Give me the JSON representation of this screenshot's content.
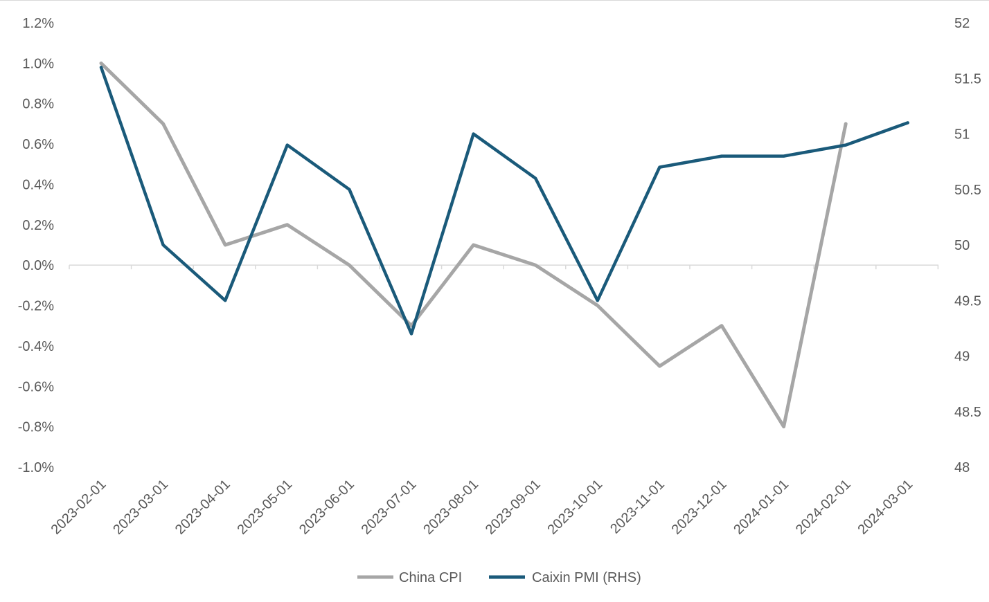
{
  "chart_data": {
    "type": "line",
    "title": "",
    "categories": [
      "2023-02-01",
      "2023-03-01",
      "2023-04-01",
      "2023-05-01",
      "2023-06-01",
      "2023-07-01",
      "2023-08-01",
      "2023-09-01",
      "2023-10-01",
      "2023-11-01",
      "2023-12-01",
      "2024-01-01",
      "2024-02-01",
      "2024-03-01"
    ],
    "y_left": {
      "ylim": [
        -0.01,
        0.012
      ],
      "ticks": [
        "1.2%",
        "1.0%",
        "0.8%",
        "0.6%",
        "0.4%",
        "0.2%",
        "0.0%",
        "-0.2%",
        "-0.4%",
        "-0.6%",
        "-0.8%",
        "-1.0%"
      ],
      "tick_values": [
        0.012,
        0.01,
        0.008,
        0.006,
        0.004,
        0.002,
        0.0,
        -0.002,
        -0.004,
        -0.006,
        -0.008,
        -0.01
      ]
    },
    "y_right": {
      "ylim": [
        48,
        52
      ],
      "ticks": [
        "52",
        "51.5",
        "51",
        "50.5",
        "50",
        "49.5",
        "49",
        "48.5",
        "48"
      ],
      "tick_values": [
        52,
        51.5,
        51,
        50.5,
        50,
        49.5,
        49,
        48.5,
        48
      ]
    },
    "series": [
      {
        "name": "China CPI",
        "axis": "left",
        "color": "#a6a6a6",
        "values": [
          0.01,
          0.007,
          0.001,
          0.002,
          0.0,
          -0.003,
          0.001,
          0.0,
          -0.002,
          -0.005,
          -0.003,
          -0.008,
          0.007,
          null
        ]
      },
      {
        "name": "Caixin PMI (RHS)",
        "axis": "right",
        "color": "#1a5a7a",
        "values": [
          51.6,
          50.0,
          49.5,
          50.9,
          50.5,
          49.2,
          51.0,
          50.6,
          49.5,
          50.7,
          50.8,
          50.8,
          50.9,
          51.1
        ]
      }
    ],
    "grid": false,
    "legend_position": "bottom"
  }
}
